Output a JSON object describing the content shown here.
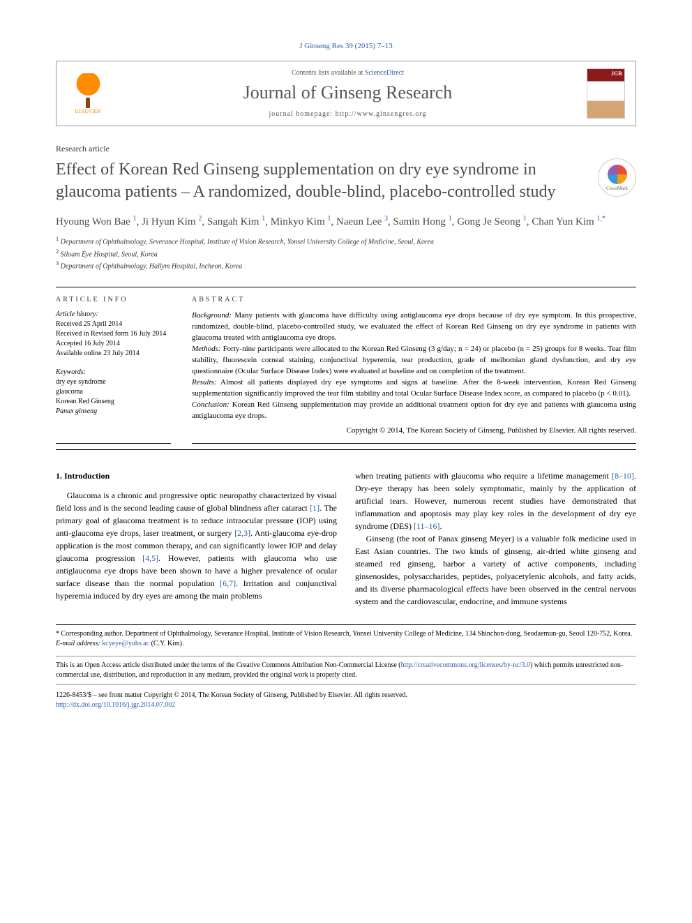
{
  "header": {
    "citation": "J Ginseng Res 39 (2015) 7–13",
    "contents_prefix": "Contents lists available at ",
    "contents_link": "ScienceDirect",
    "journal_name": "Journal of Ginseng Research",
    "homepage_label": "journal homepage: http://www.ginsengres.org",
    "elsevier_label": "ELSEVIER",
    "crossmark_label": "CrossMark"
  },
  "article": {
    "type": "Research article",
    "title": "Effect of Korean Red Ginseng supplementation on dry eye syndrome in glaucoma patients – A randomized, double-blind, placebo-controlled study",
    "authors_html": "Hyoung Won Bae <sup>1</sup>, Ji Hyun Kim <sup>2</sup>, Sangah Kim <sup>1</sup>, Minkyo Kim <sup>1</sup>, Naeun Lee <sup>3</sup>, Samin Hong <sup>1</sup>, Gong Je Seong <sup>1</sup>, Chan Yun Kim <sup>1,*</sup>",
    "affiliations": [
      "Department of Ophthalmology, Severance Hospital, Institute of Vision Research, Yonsei University College of Medicine, Seoul, Korea",
      "Siloam Eye Hospital, Seoul, Korea",
      "Department of Ophthalmology, Hallym Hospital, Incheon, Korea"
    ]
  },
  "info": {
    "header": "ARTICLE INFO",
    "history_label": "Article history:",
    "history": [
      "Received 25 April 2014",
      "Received in Revised form 16 July 2014",
      "Accepted 16 July 2014",
      "Available online 23 July 2014"
    ],
    "keywords_label": "Keywords:",
    "keywords": [
      {
        "text": "dry eye syndrome",
        "italic": false
      },
      {
        "text": "glaucoma",
        "italic": false
      },
      {
        "text": "Korean Red Ginseng",
        "italic": false
      },
      {
        "text": "Panax ginseng",
        "italic": true
      }
    ]
  },
  "abstract": {
    "header": "ABSTRACT",
    "segments": [
      {
        "label": "Background:",
        "text": " Many patients with glaucoma have difficulty using antiglaucoma eye drops because of dry eye symptom. In this prospective, randomized, double-blind, placebo-controlled study, we evaluated the effect of Korean Red Ginseng on dry eye syndrome in patients with glaucoma treated with antiglaucoma eye drops."
      },
      {
        "label": "Methods:",
        "text": " Forty-nine participants were allocated to the Korean Red Ginseng (3 g/day; n = 24) or placebo (n = 25) groups for 8 weeks. Tear film stability, fluorescein corneal staining, conjunctival hyperemia, tear production, grade of meibomian gland dysfunction, and dry eye questionnaire (Ocular Surface Disease Index) were evaluated at baseline and on completion of the treatment."
      },
      {
        "label": "Results:",
        "text": " Almost all patients displayed dry eye symptoms and signs at baseline. After the 8-week intervention, Korean Red Ginseng supplementation significantly improved the tear film stability and total Ocular Surface Disease Index score, as compared to placebo (p < 0.01)."
      },
      {
        "label": "Conclusion:",
        "text": " Korean Red Ginseng supplementation may provide an additional treatment option for dry eye and patients with glaucoma using antiglaucoma eye drops."
      }
    ],
    "copyright": "Copyright © 2014, The Korean Society of Ginseng, Published by Elsevier. All rights reserved."
  },
  "body": {
    "intro_heading": "1. Introduction",
    "col1": {
      "p1_pre": "Glaucoma is a chronic and progressive optic neuropathy characterized by visual field loss and is the second leading cause of global blindness after cataract ",
      "r1": "[1]",
      "p1_mid1": ". The primary goal of glaucoma treatment is to reduce intraocular pressure (IOP) using anti-glaucoma eye drops, laser treatment, or surgery ",
      "r2": "[2,3]",
      "p1_mid2": ". Anti-glaucoma eye-drop application is the most common therapy, and can significantly lower IOP and delay glaucoma progression ",
      "r3": "[4,5]",
      "p1_mid3": ". However, patients with glaucoma who use antiglaucoma eye drops have been shown to have a higher prevalence of ocular surface disease than the normal population ",
      "r4": "[6,7]",
      "p1_post": ". Irritation and conjunctival hyperemia induced by dry eyes are among the main problems"
    },
    "col2": {
      "p1_pre": "when treating patients with glaucoma who require a lifetime management ",
      "r1": "[8–10]",
      "p1_mid": ". Dry-eye therapy has been solely symptomatic, mainly by the application of artificial tears. However, numerous recent studies have demonstrated that inflammation and apoptosis may play key roles in the development of dry eye syndrome (DES) ",
      "r2": "[11–16]",
      "p1_post": ".",
      "p2": "Ginseng (the root of Panax ginseng Meyer) is a valuable folk medicine used in East Asian countries. The two kinds of ginseng, air-dried white ginseng and steamed red ginseng, harbor a variety of active components, including ginsenosides, polysaccharides, peptides, polyacetylenic alcohols, and fatty acids, and its diverse pharmacological effects have been observed in the central nervous system and the cardiovascular, endocrine, and immune systems"
    }
  },
  "footnotes": {
    "corresponding": "* Corresponding author. Department of Ophthalmology, Severance Hospital, Institute of Vision Research, Yonsei University College of Medicine, 134 Shinchon-dong, Seodaemun-gu, Seoul 120-752, Korea.",
    "email_label": "E-mail address: ",
    "email": "kcyeye@yuhs.ac",
    "email_suffix": " (C.Y. Kim).",
    "license_pre": "This is an Open Access article distributed under the terms of the Creative Commons Attribution Non-Commercial License (",
    "license_link": "http://creativecommons.org/licenses/by-nc/3.0",
    "license_post": ") which permits unrestricted non-commercial use, distribution, and reproduction in any medium, provided the original work is properly cited.",
    "issn_line": "1226-8453/$ – see front matter Copyright © 2014, The Korean Society of Ginseng, Published by Elsevier. All rights reserved.",
    "doi": "http://dx.doi.org/10.1016/j.jgr.2014.07.002"
  },
  "colors": {
    "link": "#2a5caa",
    "text": "#000000",
    "title_gray": "#4a4a4a",
    "elsevier_orange": "#ff8c00"
  }
}
